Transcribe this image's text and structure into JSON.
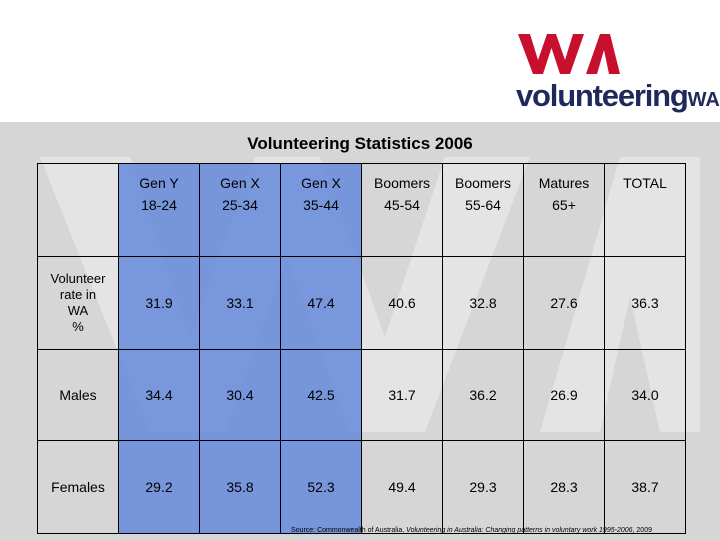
{
  "brand": {
    "logo_text": "volunteering",
    "logo_suffix": "WA",
    "logo_mark_color": "#c8102e",
    "logo_text_color": "#1f2a5c"
  },
  "title": "Volunteering Statistics 2006",
  "table": {
    "columns": [
      {
        "line1": "Gen Y",
        "line2": "18-24",
        "highlight": true
      },
      {
        "line1": "Gen X",
        "line2": "25-34",
        "highlight": true
      },
      {
        "line1": "Gen X",
        "line2": "35-44",
        "highlight": true
      },
      {
        "line1": "Boomers",
        "line2": "45-54",
        "highlight": false
      },
      {
        "line1": "Boomers",
        "line2": "55-64",
        "highlight": false
      },
      {
        "line1": "Matures",
        "line2": "65+",
        "highlight": false
      },
      {
        "line1": "TOTAL",
        "line2": "",
        "highlight": false
      }
    ],
    "rows": [
      {
        "label": [
          "Volunteer",
          "rate in",
          "WA",
          "%"
        ],
        "values": [
          "31.9",
          "33.1",
          "47.4",
          "40.6",
          "32.8",
          "27.6",
          "36.3"
        ]
      },
      {
        "label": [
          "Males"
        ],
        "values": [
          "34.4",
          "30.4",
          "42.5",
          "31.7",
          "36.2",
          "26.9",
          "34.0"
        ]
      },
      {
        "label": [
          "Females"
        ],
        "values": [
          "29.2",
          "35.8",
          "52.3",
          "49.4",
          "29.3",
          "28.3",
          "38.7"
        ]
      }
    ],
    "highlight_color": "#6086db"
  },
  "source": {
    "prefix": "Source: Commonwealth of Australia, ",
    "italic": "Volunteering in Australia: Changing patterns in voluntary work 1995-2006",
    "suffix": ", 2009"
  }
}
